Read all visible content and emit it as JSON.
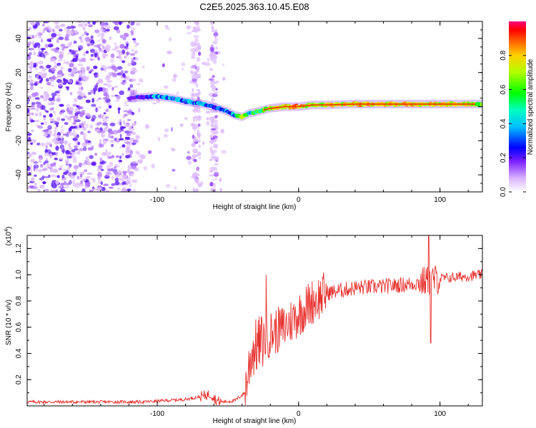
{
  "title": "C2E5.2025.363.10.45.E08",
  "chart_data": [
    {
      "type": "heatmap",
      "name": "spectrogram",
      "xlabel": "Height of straight line (km)",
      "ylabel": "Frequency (Hz)",
      "xlim": [
        -192,
        130
      ],
      "ylim": [
        -50,
        50
      ],
      "xticks": [
        -100,
        0,
        100
      ],
      "yticks": [
        -40,
        -20,
        0,
        20,
        40
      ],
      "colorbar": {
        "label": "Normalized spectral amplitude",
        "range": [
          0,
          1
        ],
        "ticks": [
          "0.0",
          "0.2",
          "0.4",
          "0.6",
          "0.8"
        ],
        "tick_values": [
          0.0,
          0.2,
          0.4,
          0.6,
          0.8
        ]
      },
      "ridge": {
        "description": "dominant frequency track",
        "x": [
          -120,
          -110,
          -100,
          -90,
          -80,
          -70,
          -60,
          -50,
          -45,
          -40,
          -35,
          -30,
          -20,
          -10,
          0,
          10,
          20,
          40,
          60,
          80,
          100,
          120,
          130
        ],
        "y": [
          5,
          5.5,
          6,
          5,
          3,
          2,
          0,
          -3,
          -5,
          -6,
          -4,
          -3,
          -1,
          0,
          0,
          1,
          1,
          1.5,
          1.5,
          1.5,
          1.5,
          1.5,
          1.5
        ],
        "amplitude": [
          0.2,
          0.35,
          0.5,
          0.45,
          0.45,
          0.5,
          0.4,
          0.45,
          0.5,
          0.85,
          0.5,
          0.7,
          0.8,
          0.9,
          0.95,
          0.8,
          0.85,
          0.9,
          0.9,
          0.9,
          0.85,
          0.85,
          0.75
        ]
      }
    },
    {
      "type": "line",
      "name": "snr",
      "xlabel": "Height of straight line (km)",
      "ylabel": "SNR (10 * v/v)",
      "y_multiplier": "(x10^4)",
      "xlim": [
        -192,
        130
      ],
      "ylim": [
        0,
        1.3
      ],
      "xticks": [
        -100,
        0,
        100
      ],
      "yticks": [
        0.2,
        0.4,
        0.6,
        0.8,
        1.0,
        1.2
      ],
      "ytick_labels": [
        "0.2",
        "0.4",
        "0.6",
        "0.8",
        "1.0",
        "1.2"
      ],
      "series": [
        {
          "name": "SNR",
          "color": "#e8322e",
          "x": [
            -192,
            -150,
            -110,
            -80,
            -70,
            -62,
            -58,
            -55,
            -45,
            -38,
            -35,
            -33,
            -30,
            -25,
            -20,
            -10,
            0,
            10,
            20,
            30,
            40,
            60,
            80,
            90,
            93,
            95,
            100,
            110,
            120,
            130
          ],
          "y": [
            0.03,
            0.03,
            0.03,
            0.05,
            0.07,
            0.09,
            0.04,
            0.03,
            0.04,
            0.1,
            0.3,
            0.42,
            0.45,
            0.5,
            0.55,
            0.6,
            0.7,
            0.8,
            0.86,
            0.88,
            0.9,
            0.91,
            0.93,
            0.95,
            0.95,
            0.96,
            0.97,
            0.98,
            0.99,
            1.0
          ]
        }
      ],
      "spikes": [
        {
          "x": -23,
          "y": 1.0
        },
        {
          "x": 92,
          "y": 1.3
        },
        {
          "x": 93.5,
          "y": 0.48
        }
      ]
    }
  ]
}
